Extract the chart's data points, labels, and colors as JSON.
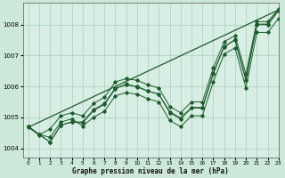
{
  "title": "Graphe pression niveau de la mer (hPa)",
  "background_color": "#cce8d8",
  "plot_bg_color": "#d8ede4",
  "line_color": "#1a5c2a",
  "grid_color": "#aacfbe",
  "xlim": [
    -0.5,
    23
  ],
  "ylim": [
    1003.7,
    1008.7
  ],
  "yticks": [
    1004,
    1005,
    1006,
    1007,
    1008
  ],
  "xticks": [
    0,
    1,
    2,
    3,
    4,
    5,
    6,
    7,
    8,
    9,
    10,
    11,
    12,
    13,
    14,
    15,
    16,
    17,
    18,
    19,
    20,
    21,
    22,
    23
  ],
  "series": [
    [
      1004.7,
      1004.45,
      1004.2,
      1004.75,
      1004.85,
      1004.85,
      1005.25,
      1005.45,
      1005.95,
      1006.05,
      1006.0,
      1005.85,
      1005.75,
      1005.15,
      1004.95,
      1005.3,
      1005.3,
      1006.4,
      1007.3,
      1007.5,
      1006.2,
      1008.0,
      1008.0,
      1008.45
    ],
    [
      1004.7,
      1004.45,
      1004.2,
      1004.75,
      1004.85,
      1004.82,
      1005.22,
      1005.42,
      1005.92,
      1006.08,
      1005.98,
      1005.85,
      1005.75,
      1005.18,
      1004.98,
      1005.32,
      1005.32,
      1006.45,
      1007.28,
      1007.52,
      1006.22,
      1008.02,
      1008.02,
      1008.48
    ],
    [
      1004.68,
      1004.43,
      1004.63,
      1005.05,
      1005.15,
      1005.05,
      1005.45,
      1005.65,
      1006.15,
      1006.25,
      1006.2,
      1006.05,
      1005.95,
      1005.35,
      1005.15,
      1005.5,
      1005.5,
      1006.6,
      1007.45,
      1007.65,
      1006.4,
      1008.1,
      1008.1,
      1008.5
    ],
    [
      1004.7,
      1004.45,
      1004.35,
      1004.85,
      1004.95,
      1004.72,
      1005.0,
      1005.2,
      1005.7,
      1005.8,
      1005.75,
      1005.6,
      1005.5,
      1004.9,
      1004.7,
      1005.05,
      1005.05,
      1006.15,
      1007.05,
      1007.25,
      1005.95,
      1007.75,
      1007.75,
      1008.2
    ]
  ],
  "straight_line": [
    1004.68,
    1008.48
  ]
}
